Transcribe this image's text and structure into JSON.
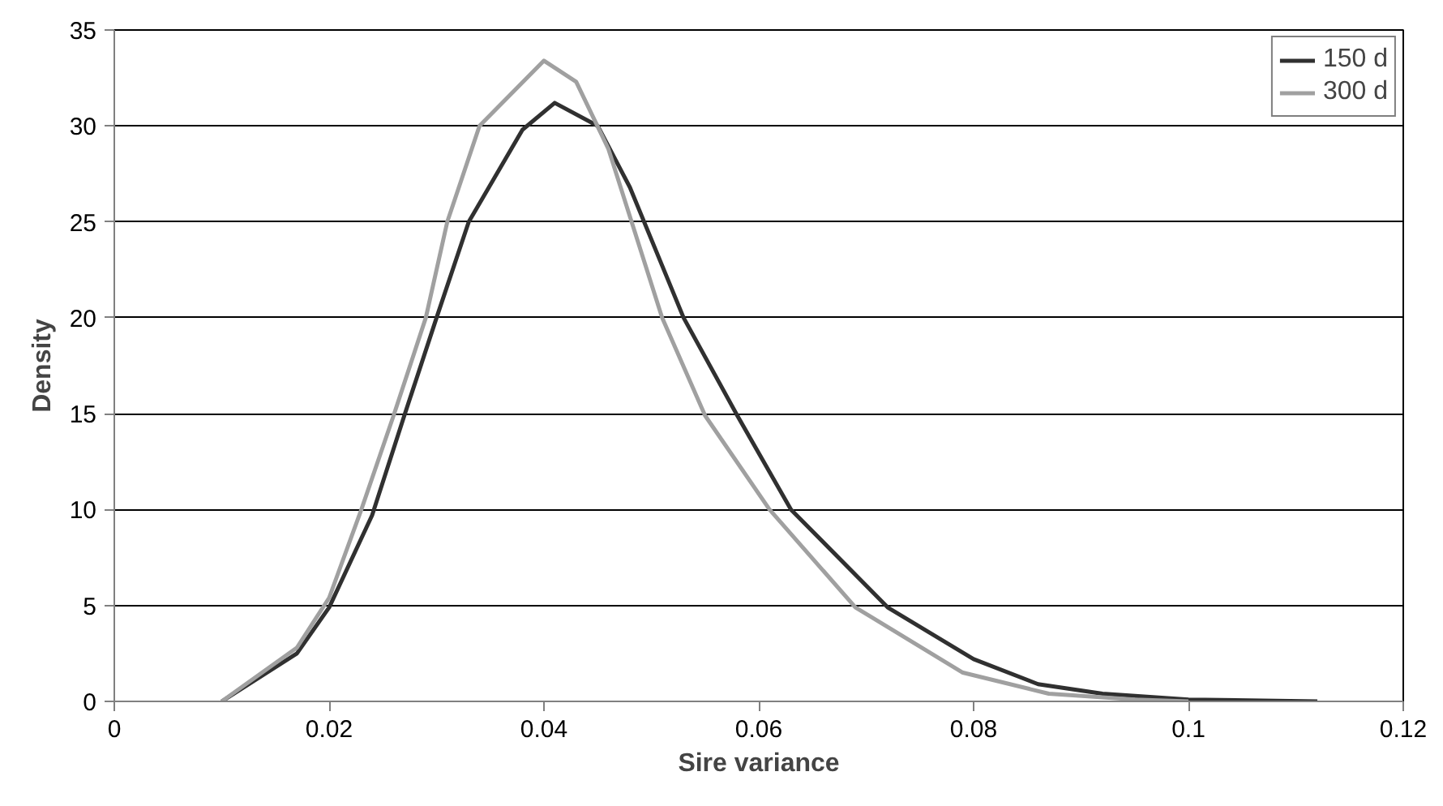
{
  "chart_data": {
    "type": "line",
    "xlabel": "Sire variance",
    "ylabel": "Density",
    "xlim": [
      0,
      0.12
    ],
    "xticks": [
      {
        "value": 0,
        "label": "0"
      },
      0.02,
      0.04,
      0.06,
      0.08,
      0.1,
      0.12
    ],
    "ylim": [
      0,
      35
    ],
    "yticks": [
      0,
      5,
      10,
      15,
      20,
      25,
      30,
      35
    ],
    "grid": "y",
    "legend": "top right",
    "marker": "none",
    "line_style": "solid",
    "series": [
      {
        "name": "150 d",
        "color": "#303030",
        "x": [
          0.01,
          0.017,
          0.02,
          0.024,
          0.027,
          0.03,
          0.033,
          0.038,
          0.041,
          0.045,
          0.048,
          0.053,
          0.058,
          0.063,
          0.072,
          0.08,
          0.086,
          0.092,
          0.1,
          0.112
        ],
        "values": [
          0,
          2.5,
          4.9,
          9.7,
          14.9,
          20.0,
          25.0,
          29.8,
          31.2,
          30.0,
          26.8,
          20.0,
          14.9,
          10.0,
          4.9,
          2.2,
          0.9,
          0.4,
          0.1,
          0
        ]
      },
      {
        "name": "300 d",
        "color": "#a0a0a0",
        "x": [
          0.01,
          0.017,
          0.02,
          0.023,
          0.026,
          0.029,
          0.031,
          0.034,
          0.04,
          0.043,
          0.046,
          0.051,
          0.055,
          0.061,
          0.069,
          0.079,
          0.087,
          0.095,
          0.1
        ],
        "values": [
          0,
          2.8,
          5.4,
          10.0,
          14.9,
          20.0,
          25.0,
          30.0,
          33.4,
          32.3,
          28.8,
          20.0,
          14.9,
          10.0,
          4.9,
          1.5,
          0.4,
          0.1,
          0
        ]
      }
    ]
  }
}
